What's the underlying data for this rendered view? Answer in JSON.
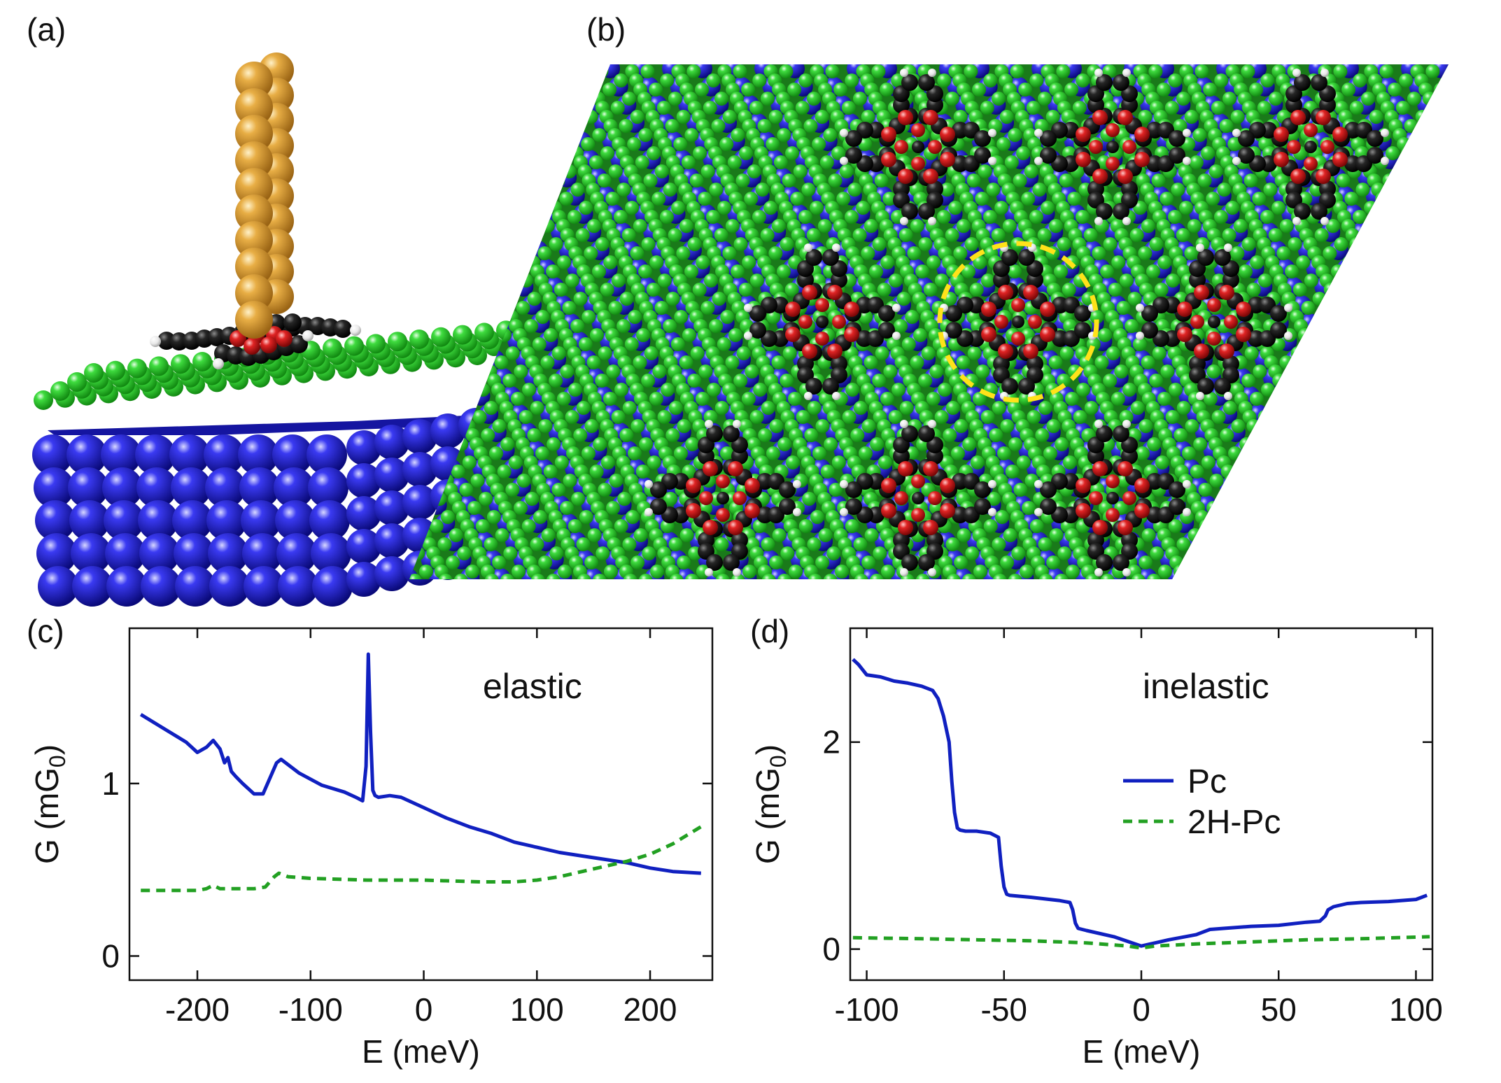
{
  "panels": {
    "a": "(a)",
    "b": "(b)",
    "c": "(c)",
    "d": "(d)"
  },
  "colors": {
    "tip_gold": "#e0a83a",
    "substrate_blue": "#1c1ccc",
    "layer_green": "#33d433",
    "carbon": "#1a1a1a",
    "oxygen_red": "#dd2222",
    "hydrogen": "#f2f2f2",
    "ring_yellow": "#ffe21a",
    "pc_line": "#1020c0",
    "h2pc_line": "#22a022"
  },
  "chart_data": [
    {
      "type": "line",
      "panel": "(c)",
      "annotation": "elastic",
      "xlabel": "E (meV)",
      "ylabel": "G (mG",
      "ylabel_sub": "0",
      "ylabel_tail": ")",
      "xlim": [
        -260,
        255
      ],
      "ylim": [
        -0.14,
        1.9
      ],
      "xticks": [
        -200,
        -100,
        0,
        100,
        200
      ],
      "xtick_labels": [
        "-200",
        "-100",
        "0",
        "100",
        "200"
      ],
      "yticks": [
        0,
        1
      ],
      "ytick_labels": [
        "0",
        "1"
      ],
      "series": [
        {
          "name": "Pc",
          "style": "solid",
          "x": [
            -250,
            -230,
            -210,
            -200,
            -192,
            -186,
            -180,
            -176,
            -173,
            -170,
            -166,
            -160,
            -150,
            -142,
            -136,
            -130,
            -126,
            -110,
            -90,
            -70,
            -60,
            -54,
            -51,
            -49,
            -47,
            -45,
            -43,
            -40,
            -30,
            -20,
            0,
            20,
            40,
            60,
            80,
            100,
            120,
            140,
            160,
            180,
            200,
            220,
            245
          ],
          "y": [
            1.4,
            1.32,
            1.24,
            1.18,
            1.21,
            1.25,
            1.2,
            1.12,
            1.15,
            1.07,
            1.04,
            1.0,
            0.94,
            0.94,
            1.03,
            1.12,
            1.14,
            1.06,
            0.99,
            0.95,
            0.92,
            0.9,
            1.1,
            1.75,
            1.3,
            0.96,
            0.93,
            0.92,
            0.93,
            0.92,
            0.86,
            0.8,
            0.75,
            0.71,
            0.66,
            0.63,
            0.6,
            0.58,
            0.56,
            0.54,
            0.51,
            0.49,
            0.48
          ]
        },
        {
          "name": "2H-Pc",
          "style": "dashed",
          "x": [
            -250,
            -200,
            -192,
            -186,
            -180,
            -150,
            -140,
            -132,
            -128,
            -120,
            -100,
            -50,
            0,
            50,
            80,
            100,
            120,
            140,
            160,
            180,
            200,
            220,
            245
          ],
          "y": [
            0.38,
            0.38,
            0.39,
            0.41,
            0.39,
            0.39,
            0.4,
            0.46,
            0.48,
            0.46,
            0.45,
            0.44,
            0.44,
            0.43,
            0.43,
            0.44,
            0.46,
            0.49,
            0.52,
            0.55,
            0.59,
            0.65,
            0.75
          ]
        }
      ]
    },
    {
      "type": "line",
      "panel": "(d)",
      "annotation": "inelastic",
      "xlabel": "E (meV)",
      "ylabel": "G (mG",
      "ylabel_sub": "0",
      "ylabel_tail": ")",
      "xlim": [
        -106,
        106
      ],
      "ylim": [
        -0.3,
        3.1
      ],
      "xticks": [
        -100,
        -50,
        0,
        50,
        100
      ],
      "xtick_labels": [
        "-100",
        "-50",
        "0",
        "50",
        "100"
      ],
      "yticks": [
        0,
        2
      ],
      "ytick_labels": [
        "0",
        "2"
      ],
      "legend": {
        "position": "center-right"
      },
      "series": [
        {
          "name": "Pc",
          "style": "solid",
          "x": [
            -105,
            -103,
            -100,
            -95,
            -90,
            -85,
            -80,
            -76,
            -74,
            -72,
            -70,
            -69,
            -68,
            -67,
            -66,
            -64,
            -60,
            -55,
            -52,
            -51,
            -50,
            -49,
            -48,
            -40,
            -30,
            -26,
            -25,
            -24,
            -23,
            -20,
            -10,
            0,
            10,
            20,
            22,
            25,
            30,
            40,
            50,
            60,
            65,
            67,
            68,
            70,
            75,
            80,
            90,
            100,
            104
          ],
          "y": [
            2.8,
            2.75,
            2.65,
            2.63,
            2.59,
            2.57,
            2.54,
            2.5,
            2.42,
            2.25,
            2.0,
            1.62,
            1.32,
            1.17,
            1.15,
            1.14,
            1.14,
            1.12,
            1.08,
            0.8,
            0.6,
            0.53,
            0.52,
            0.5,
            0.47,
            0.45,
            0.38,
            0.25,
            0.2,
            0.18,
            0.12,
            0.03,
            0.09,
            0.14,
            0.16,
            0.19,
            0.2,
            0.22,
            0.23,
            0.26,
            0.27,
            0.32,
            0.38,
            0.41,
            0.44,
            0.45,
            0.46,
            0.48,
            0.52
          ]
        },
        {
          "name": "2H-Pc",
          "style": "dashed",
          "x": [
            -105,
            -80,
            -60,
            -40,
            -20,
            -5,
            0,
            5,
            20,
            40,
            60,
            80,
            105
          ],
          "y": [
            0.11,
            0.1,
            0.09,
            0.08,
            0.06,
            0.03,
            0.01,
            0.03,
            0.05,
            0.07,
            0.09,
            0.1,
            0.12
          ]
        }
      ]
    }
  ]
}
